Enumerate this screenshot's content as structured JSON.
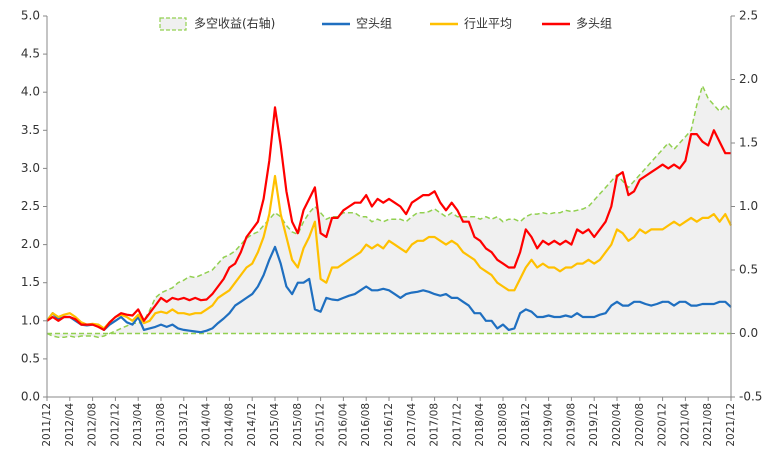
{
  "chart_data": {
    "type": "line",
    "categories": [
      "2011/12",
      null,
      null,
      null,
      "2012/04",
      null,
      null,
      null,
      "2012/08",
      null,
      null,
      null,
      "2012/12",
      null,
      null,
      null,
      "2013/04",
      null,
      null,
      null,
      "2013/08",
      null,
      null,
      null,
      "2013/12",
      null,
      null,
      null,
      "2014/04",
      null,
      null,
      null,
      "2014/08",
      null,
      null,
      null,
      "2014/12",
      null,
      null,
      null,
      "2015/04",
      null,
      null,
      null,
      "2015/08",
      null,
      null,
      null,
      "2015/12",
      null,
      null,
      null,
      "2016/04",
      null,
      null,
      null,
      "2016/08",
      null,
      null,
      null,
      "2016/12",
      null,
      null,
      null,
      "2017/04",
      null,
      null,
      null,
      "2017/08",
      null,
      null,
      null,
      "2017/12",
      null,
      null,
      null,
      "2018/04",
      null,
      null,
      null,
      "2018/08",
      null,
      null,
      null,
      "2018/12",
      null,
      null,
      null,
      "2019/04",
      null,
      null,
      null,
      "2019/08",
      null,
      null,
      null,
      "2019/12",
      null,
      null,
      null,
      "2020/04",
      null,
      null,
      null,
      "2020/08",
      null,
      null,
      null,
      "2020/12",
      null,
      null,
      null,
      "2021/04",
      null,
      null,
      null,
      "2021/08",
      null,
      null,
      null,
      "2021/12"
    ],
    "series": [
      {
        "name": "多空收益(右轴)",
        "color": "#92d050",
        "fill_color": "#f0f0f0",
        "axis": "y2",
        "area": true,
        "dashed": true,
        "values": [
          0.0,
          -0.02,
          -0.03,
          -0.03,
          -0.02,
          -0.03,
          -0.02,
          -0.02,
          -0.02,
          -0.03,
          -0.02,
          0.0,
          0.02,
          0.04,
          0.06,
          0.08,
          0.08,
          0.1,
          0.18,
          0.28,
          0.32,
          0.34,
          0.36,
          0.4,
          0.42,
          0.45,
          0.44,
          0.46,
          0.48,
          0.5,
          0.55,
          0.6,
          0.62,
          0.65,
          0.7,
          0.75,
          0.78,
          0.8,
          0.85,
          0.9,
          0.95,
          0.92,
          0.85,
          0.8,
          0.78,
          0.88,
          0.95,
          1.0,
          0.95,
          0.9,
          0.92,
          0.92,
          0.95,
          0.95,
          0.95,
          0.92,
          0.92,
          0.88,
          0.9,
          0.88,
          0.9,
          0.9,
          0.9,
          0.88,
          0.92,
          0.95,
          0.95,
          0.96,
          0.98,
          0.95,
          0.92,
          0.95,
          0.92,
          0.92,
          0.92,
          0.92,
          0.9,
          0.92,
          0.9,
          0.92,
          0.88,
          0.9,
          0.9,
          0.88,
          0.92,
          0.94,
          0.94,
          0.95,
          0.94,
          0.95,
          0.95,
          0.97,
          0.96,
          0.97,
          0.98,
          1.0,
          1.05,
          1.1,
          1.15,
          1.2,
          1.25,
          1.2,
          1.15,
          1.2,
          1.25,
          1.3,
          1.35,
          1.4,
          1.45,
          1.5,
          1.45,
          1.5,
          1.55,
          1.6,
          1.8,
          1.95,
          1.85,
          1.8,
          1.75,
          1.8,
          1.75
        ]
      },
      {
        "name": "空头组",
        "color": "#1f6fc0",
        "values": [
          1.0,
          1.1,
          1.02,
          1.05,
          1.05,
          1.0,
          0.95,
          0.94,
          0.95,
          0.93,
          0.88,
          0.95,
          1.0,
          1.05,
          0.98,
          0.95,
          1.05,
          0.88,
          0.9,
          0.92,
          0.95,
          0.92,
          0.95,
          0.9,
          0.88,
          0.87,
          0.86,
          0.85,
          0.87,
          0.9,
          0.97,
          1.03,
          1.1,
          1.2,
          1.25,
          1.3,
          1.35,
          1.45,
          1.6,
          1.8,
          1.97,
          1.75,
          1.45,
          1.35,
          1.5,
          1.5,
          1.55,
          1.15,
          1.12,
          1.3,
          1.28,
          1.27,
          1.3,
          1.33,
          1.35,
          1.4,
          1.45,
          1.4,
          1.4,
          1.42,
          1.4,
          1.35,
          1.3,
          1.35,
          1.37,
          1.38,
          1.4,
          1.38,
          1.35,
          1.33,
          1.35,
          1.3,
          1.3,
          1.25,
          1.2,
          1.1,
          1.1,
          1.0,
          1.0,
          0.9,
          0.95,
          0.88,
          0.9,
          1.1,
          1.15,
          1.12,
          1.05,
          1.05,
          1.07,
          1.05,
          1.05,
          1.07,
          1.05,
          1.1,
          1.05,
          1.05,
          1.05,
          1.08,
          1.1,
          1.2,
          1.25,
          1.2,
          1.2,
          1.25,
          1.25,
          1.22,
          1.2,
          1.22,
          1.25,
          1.25,
          1.2,
          1.25,
          1.25,
          1.2,
          1.2,
          1.22,
          1.22,
          1.22,
          1.25,
          1.25,
          1.18
        ]
      },
      {
        "name": "行业平均",
        "color": "#ffc000",
        "values": [
          1.0,
          1.1,
          1.05,
          1.08,
          1.1,
          1.05,
          0.98,
          0.95,
          0.96,
          0.95,
          0.9,
          0.98,
          1.05,
          1.08,
          1.05,
          1.0,
          1.08,
          0.97,
          1.0,
          1.1,
          1.12,
          1.1,
          1.15,
          1.1,
          1.1,
          1.08,
          1.1,
          1.1,
          1.15,
          1.2,
          1.3,
          1.35,
          1.4,
          1.5,
          1.6,
          1.7,
          1.75,
          1.9,
          2.1,
          2.4,
          2.9,
          2.4,
          2.1,
          1.8,
          1.7,
          1.95,
          2.1,
          2.3,
          1.55,
          1.5,
          1.7,
          1.7,
          1.75,
          1.8,
          1.85,
          1.9,
          2.0,
          1.95,
          2.0,
          1.95,
          2.05,
          2.0,
          1.95,
          1.9,
          2.0,
          2.05,
          2.05,
          2.1,
          2.1,
          2.05,
          2.0,
          2.05,
          2.0,
          1.9,
          1.85,
          1.8,
          1.7,
          1.65,
          1.6,
          1.5,
          1.45,
          1.4,
          1.4,
          1.55,
          1.7,
          1.8,
          1.7,
          1.75,
          1.7,
          1.7,
          1.65,
          1.7,
          1.7,
          1.75,
          1.75,
          1.8,
          1.75,
          1.8,
          1.9,
          2.0,
          2.2,
          2.15,
          2.05,
          2.1,
          2.2,
          2.15,
          2.2,
          2.2,
          2.2,
          2.25,
          2.3,
          2.25,
          2.3,
          2.35,
          2.3,
          2.35,
          2.35,
          2.4,
          2.3,
          2.4,
          2.25
        ]
      },
      {
        "name": "多头组",
        "color": "#ff0000",
        "values": [
          1.0,
          1.05,
          1.0,
          1.05,
          1.05,
          1.02,
          0.95,
          0.95,
          0.95,
          0.92,
          0.88,
          0.98,
          1.05,
          1.1,
          1.08,
          1.07,
          1.15,
          1.0,
          1.1,
          1.2,
          1.3,
          1.25,
          1.3,
          1.28,
          1.3,
          1.27,
          1.3,
          1.27,
          1.28,
          1.35,
          1.45,
          1.55,
          1.7,
          1.75,
          1.9,
          2.1,
          2.2,
          2.3,
          2.6,
          3.1,
          3.8,
          3.3,
          2.7,
          2.3,
          2.15,
          2.45,
          2.6,
          2.75,
          2.15,
          2.1,
          2.35,
          2.35,
          2.45,
          2.5,
          2.55,
          2.55,
          2.65,
          2.5,
          2.6,
          2.55,
          2.6,
          2.55,
          2.5,
          2.4,
          2.55,
          2.6,
          2.65,
          2.65,
          2.7,
          2.55,
          2.45,
          2.55,
          2.45,
          2.3,
          2.3,
          2.1,
          2.05,
          1.95,
          1.9,
          1.8,
          1.75,
          1.7,
          1.7,
          1.9,
          2.2,
          2.1,
          1.95,
          2.05,
          2.0,
          2.05,
          2.0,
          2.05,
          2.0,
          2.2,
          2.15,
          2.2,
          2.1,
          2.2,
          2.3,
          2.5,
          2.9,
          2.95,
          2.65,
          2.7,
          2.85,
          2.9,
          2.95,
          3.0,
          3.05,
          3.0,
          3.05,
          3.0,
          3.1,
          3.45,
          3.45,
          3.35,
          3.3,
          3.5,
          3.35,
          3.2,
          3.2
        ]
      }
    ],
    "ylim": [
      0,
      5
    ],
    "yticks": [
      {
        "value": 0,
        "label": "0.0"
      },
      {
        "value": 0.5,
        "label": "0.5"
      },
      {
        "value": 1,
        "label": "1.0"
      },
      {
        "value": 1.5,
        "label": "1.5"
      },
      {
        "value": 2,
        "label": "2.0"
      },
      {
        "value": 2.5,
        "label": "2.5"
      },
      {
        "value": 3,
        "label": "3.0"
      },
      {
        "value": 3.5,
        "label": "3.5"
      },
      {
        "value": 4,
        "label": "4.0"
      },
      {
        "value": 4.5,
        "label": "4.5"
      },
      {
        "value": 5,
        "label": "5.0"
      }
    ],
    "y2lim": [
      -0.5,
      2.5
    ],
    "y2ticks": [
      -0.5,
      {
        "value": 0,
        "label": "0.0"
      },
      0.5,
      {
        "value": 1,
        "label": "1.0"
      },
      1.5,
      {
        "value": 2,
        "label": "2.0"
      },
      2.5
    ],
    "grid": false,
    "legend": "top"
  }
}
